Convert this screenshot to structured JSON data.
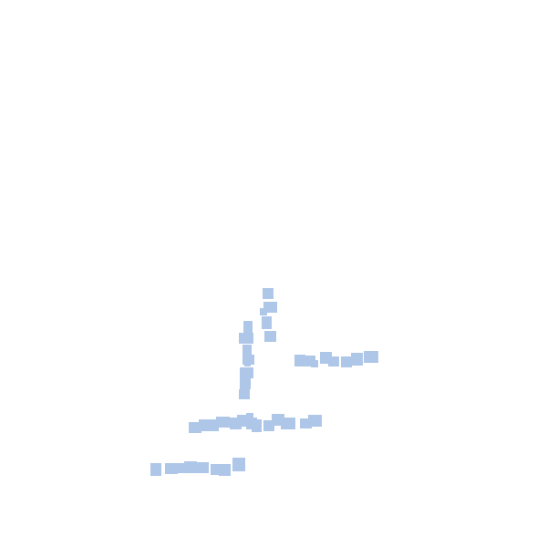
{
  "background_color": "#ffffff",
  "marker_color": "#aec7e8",
  "marker_shape": "square",
  "marker_count": 46
}
